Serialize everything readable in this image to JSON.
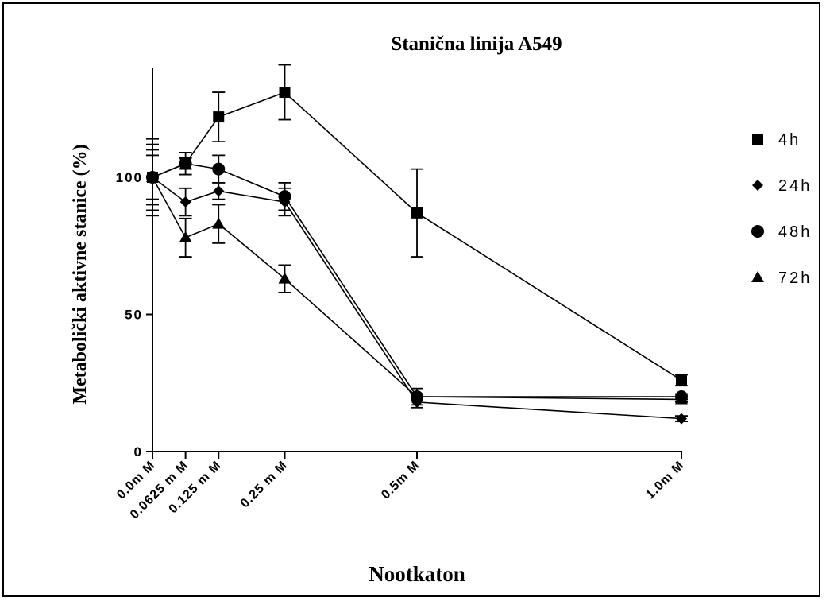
{
  "chart_data": {
    "type": "line",
    "title": "Stanična linija A549",
    "xlabel": "Nootkaton",
    "ylabel": "Metabolički aktivne stanice (%)",
    "x": [
      0.0,
      0.0625,
      0.125,
      0.25,
      0.5,
      1.0
    ],
    "x_tick_labels": [
      "0.0m M",
      "0.0625 m M",
      "0.125 m M",
      "0.25 m M",
      "0.5m M",
      "1.0m M"
    ],
    "y_ticks": [
      0,
      50,
      100
    ],
    "y_tick_labels": [
      "0",
      "50",
      "100"
    ],
    "xlim": [
      0,
      1.0
    ],
    "ylim": [
      0,
      140
    ],
    "grid": false,
    "legend_position": "right",
    "series": [
      {
        "name": "4h",
        "marker": "square",
        "values": [
          100,
          105,
          122,
          131,
          87,
          26
        ],
        "errors": [
          12,
          4,
          9,
          10,
          16,
          2
        ]
      },
      {
        "name": "24h",
        "marker": "diamond",
        "values": [
          100,
          91,
          95,
          91,
          18,
          12
        ],
        "errors": [
          10,
          5,
          3,
          5,
          2,
          1
        ]
      },
      {
        "name": "48h",
        "marker": "circle",
        "values": [
          100,
          105,
          103,
          93,
          20,
          20
        ],
        "errors": [
          14,
          2,
          5,
          5,
          1,
          1
        ]
      },
      {
        "name": "72h",
        "marker": "triangle",
        "values": [
          100,
          78,
          83,
          63,
          20,
          19
        ],
        "errors": [
          8,
          7,
          7,
          5,
          3,
          1
        ]
      }
    ],
    "colors": {
      "line": "#000000",
      "marker": "#000000",
      "background": "#ffffff"
    }
  }
}
